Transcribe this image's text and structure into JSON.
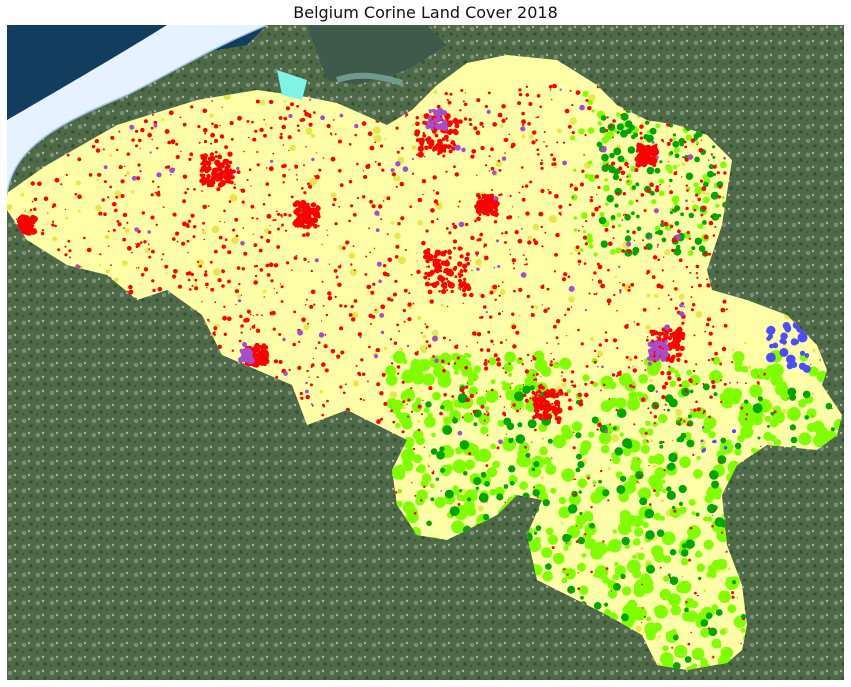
{
  "title": "Belgium Corine Land Cover 2018",
  "palette": {
    "urban": "#ff0000",
    "industrial": "#a64dcc",
    "arable": "#ffffa8",
    "pasture": "#e6e64d",
    "broadleaf_forest": "#80ff00",
    "coniferous_forest": "#00a600",
    "water": "#4d4dff",
    "coastal": "#80f2e6",
    "sea": "#e6f2ff",
    "satellite_land": "#4f6a48",
    "satellite_water": "#123d5e"
  }
}
